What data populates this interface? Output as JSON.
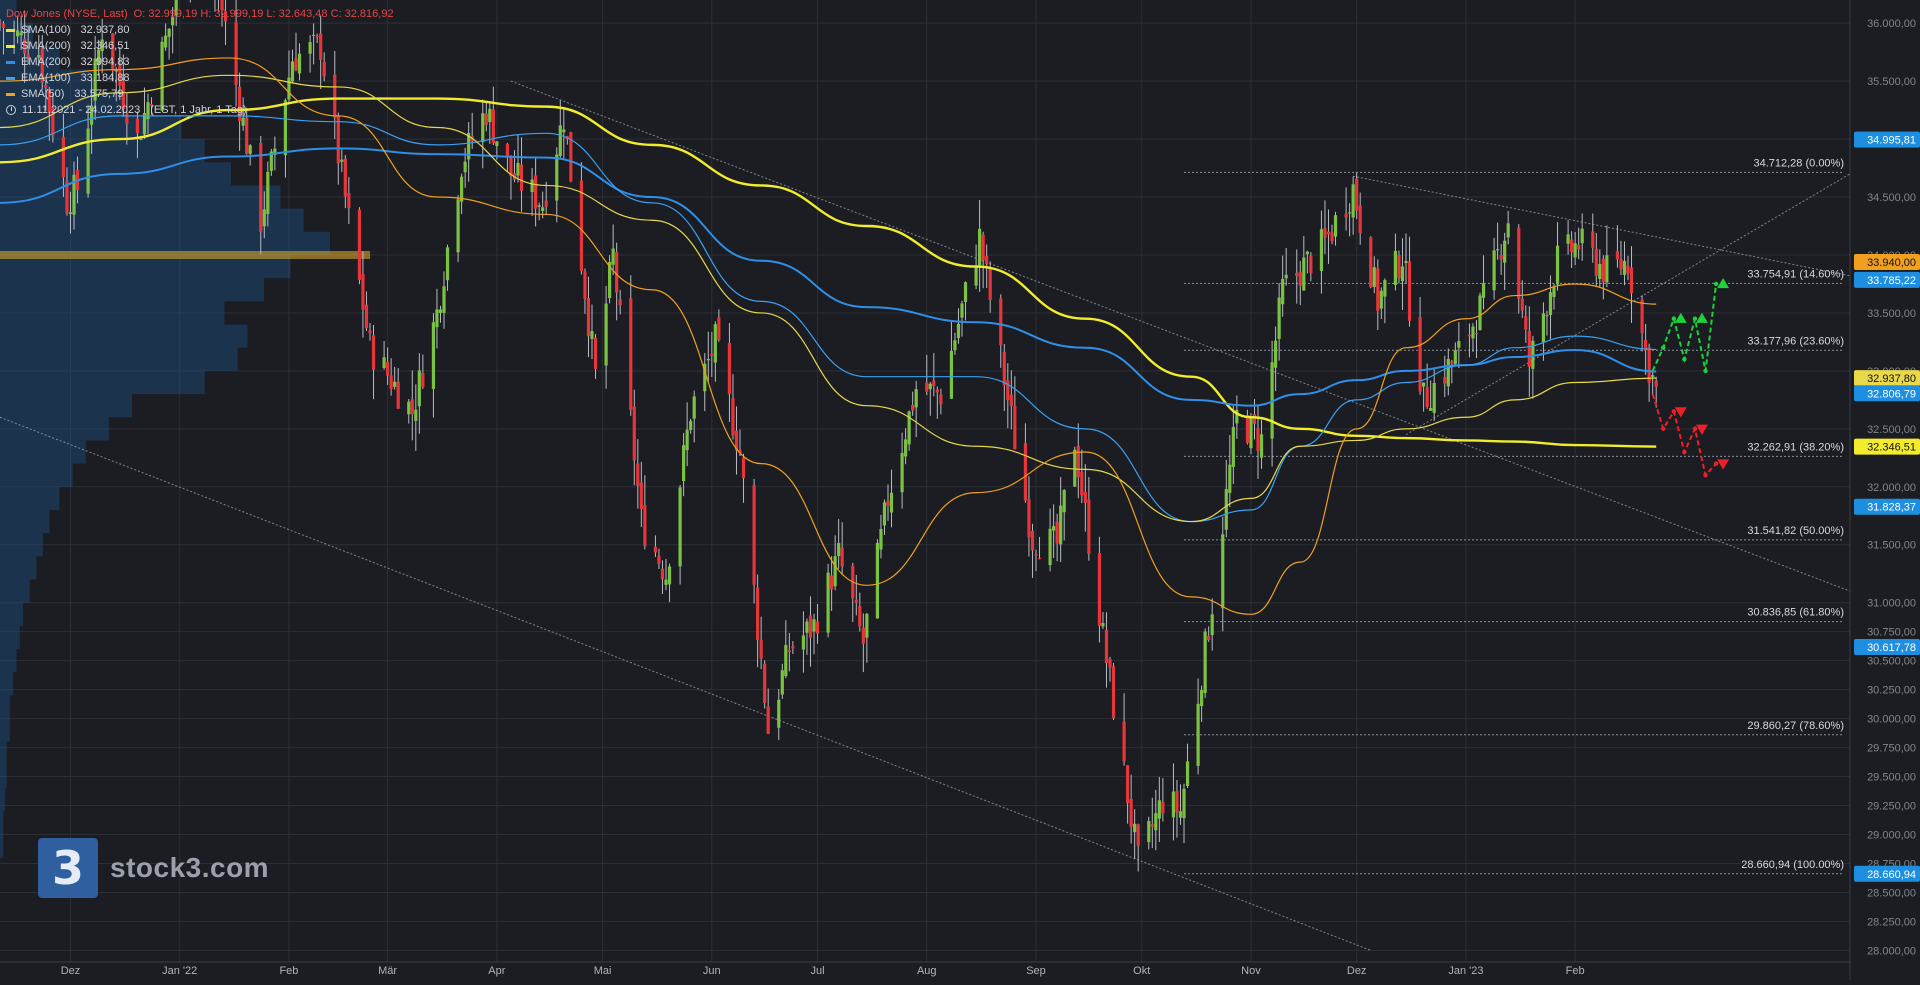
{
  "header": {
    "title": "Dow Jones (NYSE, Last)",
    "ohlc": "O: 32.999,19  H: 32.999,19  L: 32.643,48  C: 32.816,92",
    "range": "11.11.2021 - 24.02.2023",
    "range_detail": "(EST, 1 Jahr, 1 Tag)"
  },
  "legend": [
    {
      "name": "SMA(100)",
      "value": "32.937,80",
      "color": "#e8d84a"
    },
    {
      "name": "SMA(200)",
      "value": "32.346,51",
      "color": "#f2ec2c"
    },
    {
      "name": "EMA(200)",
      "value": "32.994,83",
      "color": "#2f8fe8"
    },
    {
      "name": "EMA(100)",
      "value": "33.184,88",
      "color": "#3aa0f2"
    },
    {
      "name": "SMA(50)",
      "value": "33.575,79",
      "color": "#f0a01e"
    }
  ],
  "logo": {
    "mark": "3",
    "text": "stock3.com"
  },
  "colors": {
    "up": "#7cc242",
    "down": "#e8353a",
    "grid": "#2c2f36",
    "bg": "#1b1d22"
  },
  "chart_data": {
    "type": "line",
    "title": "Dow Jones (NYSE, Last)",
    "ylim": [
      27900,
      36200
    ],
    "y_ticks": [
      {
        "v": 36000,
        "l": "36.000,00"
      },
      {
        "v": 35500,
        "l": "35.500,00"
      },
      {
        "v": 35000,
        "l": "35.000,00"
      },
      {
        "v": 34500,
        "l": "34.500,00"
      },
      {
        "v": 34000,
        "l": "34.000,00"
      },
      {
        "v": 33500,
        "l": "33.500,00"
      },
      {
        "v": 33000,
        "l": "33.000,00"
      },
      {
        "v": 32500,
        "l": "32.500,00"
      },
      {
        "v": 32000,
        "l": "32.000,00"
      },
      {
        "v": 31500,
        "l": "31.500,00"
      },
      {
        "v": 31000,
        "l": "31.000,00"
      },
      {
        "v": 30750,
        "l": "30.750,00"
      },
      {
        "v": 30500,
        "l": "30.500,00"
      },
      {
        "v": 30250,
        "l": "30.250,00"
      },
      {
        "v": 30000,
        "l": "30.000,00"
      },
      {
        "v": 29750,
        "l": "29.750,00"
      },
      {
        "v": 29500,
        "l": "29.500,00"
      },
      {
        "v": 29250,
        "l": "29.250,00"
      },
      {
        "v": 29000,
        "l": "29.000,00"
      },
      {
        "v": 28750,
        "l": "28.750,00"
      },
      {
        "v": 28500,
        "l": "28.500,00"
      },
      {
        "v": 28250,
        "l": "28.250,00"
      },
      {
        "v": 28000,
        "l": "28.000,00"
      }
    ],
    "x_ticks": [
      {
        "d": "2021-12-01",
        "l": "Dez"
      },
      {
        "d": "2022-01-01",
        "l": "Jan '22"
      },
      {
        "d": "2022-02-01",
        "l": "Feb"
      },
      {
        "d": "2022-03-01",
        "l": "Mär"
      },
      {
        "d": "2022-04-01",
        "l": "Apr"
      },
      {
        "d": "2022-05-01",
        "l": "Mai"
      },
      {
        "d": "2022-06-01",
        "l": "Jun"
      },
      {
        "d": "2022-07-01",
        "l": "Jul"
      },
      {
        "d": "2022-08-01",
        "l": "Aug"
      },
      {
        "d": "2022-09-01",
        "l": "Sep"
      },
      {
        "d": "2022-10-01",
        "l": "Okt"
      },
      {
        "d": "2022-11-01",
        "l": "Nov"
      },
      {
        "d": "2022-12-01",
        "l": "Dez"
      },
      {
        "d": "2023-01-01",
        "l": "Jan '23"
      },
      {
        "d": "2023-02-01",
        "l": "Feb"
      }
    ],
    "price_path": [
      [
        "2021-11-11",
        36000
      ],
      [
        "2021-11-22",
        35750
      ],
      [
        "2021-11-30",
        34480
      ],
      [
        "2021-12-03",
        34580
      ],
      [
        "2021-12-10",
        35950
      ],
      [
        "2021-12-20",
        35000
      ],
      [
        "2022-01-04",
        36600
      ],
      [
        "2022-01-12",
        36300
      ],
      [
        "2022-01-24",
        34300
      ],
      [
        "2022-02-02",
        35700
      ],
      [
        "2022-02-10",
        35800
      ],
      [
        "2022-02-18",
        34300
      ],
      [
        "2022-02-24",
        33200
      ],
      [
        "2022-03-08",
        32650
      ],
      [
        "2022-03-15",
        33500
      ],
      [
        "2022-03-22",
        34800
      ],
      [
        "2022-03-29",
        35250
      ],
      [
        "2022-04-05",
        34700
      ],
      [
        "2022-04-14",
        34450
      ],
      [
        "2022-04-20",
        35200
      ],
      [
        "2022-04-29",
        32950
      ],
      [
        "2022-05-04",
        34000
      ],
      [
        "2022-05-12",
        31700
      ],
      [
        "2022-05-19",
        31250
      ],
      [
        "2022-05-26",
        32650
      ],
      [
        "2022-06-02",
        33250
      ],
      [
        "2022-06-09",
        32300
      ],
      [
        "2022-06-17",
        29900
      ],
      [
        "2022-06-23",
        30600
      ],
      [
        "2022-06-30",
        30800
      ],
      [
        "2022-07-07",
        31400
      ],
      [
        "2022-07-14",
        30650
      ],
      [
        "2022-07-21",
        31900
      ],
      [
        "2022-07-29",
        32850
      ],
      [
        "2022-08-05",
        32800
      ],
      [
        "2022-08-16",
        34150
      ],
      [
        "2022-08-22",
        33100
      ],
      [
        "2022-08-31",
        31550
      ],
      [
        "2022-09-07",
        31500
      ],
      [
        "2022-09-12",
        32400
      ],
      [
        "2022-09-20",
        30700
      ],
      [
        "2022-09-30",
        28750
      ],
      [
        "2022-10-07",
        29300
      ],
      [
        "2022-10-12",
        29200
      ],
      [
        "2022-10-21",
        31000
      ],
      [
        "2022-10-28",
        32600
      ],
      [
        "2022-11-04",
        32400
      ],
      [
        "2022-11-10",
        33700
      ],
      [
        "2022-11-22",
        34100
      ],
      [
        "2022-11-30",
        34580
      ],
      [
        "2022-12-07",
        33600
      ],
      [
        "2022-12-14",
        34000
      ],
      [
        "2022-12-20",
        32750
      ],
      [
        "2022-12-30",
        33150
      ],
      [
        "2023-01-06",
        33600
      ],
      [
        "2023-01-13",
        34300
      ],
      [
        "2023-01-19",
        33050
      ],
      [
        "2023-01-27",
        33950
      ],
      [
        "2023-02-02",
        34100
      ],
      [
        "2023-02-10",
        33850
      ],
      [
        "2023-02-16",
        33950
      ],
      [
        "2023-02-21",
        33150
      ],
      [
        "2023-02-24",
        32817
      ]
    ],
    "series": [
      {
        "name": "SMA(200)",
        "color": "#f2ec2c",
        "width": 2.4,
        "points": [
          [
            "2021-11-11",
            34800
          ],
          [
            "2021-12-15",
            35000
          ],
          [
            "2022-01-15",
            35250
          ],
          [
            "2022-02-15",
            35350
          ],
          [
            "2022-03-15",
            35350
          ],
          [
            "2022-04-15",
            35280
          ],
          [
            "2022-05-15",
            34950
          ],
          [
            "2022-06-15",
            34600
          ],
          [
            "2022-07-15",
            34250
          ],
          [
            "2022-08-15",
            33900
          ],
          [
            "2022-09-15",
            33450
          ],
          [
            "2022-10-15",
            32950
          ],
          [
            "2022-11-01",
            32600
          ],
          [
            "2022-11-15",
            32500
          ],
          [
            "2022-12-01",
            32440
          ],
          [
            "2022-12-15",
            32420
          ],
          [
            "2023-01-01",
            32400
          ],
          [
            "2023-01-15",
            32390
          ],
          [
            "2023-02-01",
            32360
          ],
          [
            "2023-02-24",
            32347
          ]
        ]
      },
      {
        "name": "EMA(200)",
        "color": "#2f8fe8",
        "width": 2.0,
        "points": [
          [
            "2021-11-11",
            34450
          ],
          [
            "2021-12-15",
            34700
          ],
          [
            "2022-01-15",
            34850
          ],
          [
            "2022-02-15",
            34920
          ],
          [
            "2022-03-15",
            34870
          ],
          [
            "2022-04-15",
            34840
          ],
          [
            "2022-05-15",
            34500
          ],
          [
            "2022-06-15",
            33950
          ],
          [
            "2022-07-15",
            33550
          ],
          [
            "2022-08-15",
            33420
          ],
          [
            "2022-09-15",
            33200
          ],
          [
            "2022-10-15",
            32750
          ],
          [
            "2022-11-01",
            32700
          ],
          [
            "2022-11-15",
            32800
          ],
          [
            "2022-12-01",
            32920
          ],
          [
            "2022-12-15",
            33000
          ],
          [
            "2023-01-01",
            33050
          ],
          [
            "2023-01-15",
            33120
          ],
          [
            "2023-02-01",
            33180
          ],
          [
            "2023-02-24",
            32995
          ]
        ]
      },
      {
        "name": "EMA(100)",
        "color": "#3aa0f2",
        "width": 1.2,
        "points": [
          [
            "2021-11-11",
            34950
          ],
          [
            "2021-12-15",
            35200
          ],
          [
            "2022-01-15",
            35200
          ],
          [
            "2022-02-15",
            35150
          ],
          [
            "2022-03-15",
            34950
          ],
          [
            "2022-04-15",
            35050
          ],
          [
            "2022-05-15",
            34450
          ],
          [
            "2022-06-15",
            33600
          ],
          [
            "2022-07-15",
            32950
          ],
          [
            "2022-08-15",
            32950
          ],
          [
            "2022-09-15",
            32500
          ],
          [
            "2022-10-15",
            31700
          ],
          [
            "2022-11-01",
            31800
          ],
          [
            "2022-11-15",
            32350
          ],
          [
            "2022-12-01",
            32750
          ],
          [
            "2022-12-15",
            32900
          ],
          [
            "2023-01-01",
            33050
          ],
          [
            "2023-01-15",
            33200
          ],
          [
            "2023-02-01",
            33300
          ],
          [
            "2023-02-24",
            33185
          ]
        ]
      },
      {
        "name": "SMA(100)",
        "color": "#e8d84a",
        "width": 1.2,
        "points": [
          [
            "2021-11-11",
            35100
          ],
          [
            "2021-12-15",
            35400
          ],
          [
            "2022-01-15",
            35550
          ],
          [
            "2022-02-15",
            35450
          ],
          [
            "2022-03-15",
            35100
          ],
          [
            "2022-04-15",
            34600
          ],
          [
            "2022-05-15",
            34300
          ],
          [
            "2022-06-15",
            33500
          ],
          [
            "2022-07-15",
            32700
          ],
          [
            "2022-08-15",
            32350
          ],
          [
            "2022-09-15",
            32150
          ],
          [
            "2022-10-15",
            31700
          ],
          [
            "2022-11-01",
            31900
          ],
          [
            "2022-11-15",
            32350
          ],
          [
            "2022-12-01",
            32400
          ],
          [
            "2022-12-15",
            32500
          ],
          [
            "2023-01-01",
            32600
          ],
          [
            "2023-01-15",
            32750
          ],
          [
            "2023-02-01",
            32900
          ],
          [
            "2023-02-24",
            32938
          ]
        ]
      },
      {
        "name": "SMA(50)",
        "color": "#f0a01e",
        "width": 1.2,
        "points": [
          [
            "2021-11-11",
            35500
          ],
          [
            "2021-12-15",
            35600
          ],
          [
            "2022-01-15",
            35700
          ],
          [
            "2022-02-15",
            35200
          ],
          [
            "2022-03-15",
            34500
          ],
          [
            "2022-04-15",
            34350
          ],
          [
            "2022-05-15",
            33700
          ],
          [
            "2022-06-15",
            32200
          ],
          [
            "2022-07-15",
            31150
          ],
          [
            "2022-08-15",
            31950
          ],
          [
            "2022-09-15",
            32300
          ],
          [
            "2022-10-15",
            31050
          ],
          [
            "2022-11-01",
            30900
          ],
          [
            "2022-11-15",
            31350
          ],
          [
            "2022-12-01",
            32500
          ],
          [
            "2022-12-15",
            33200
          ],
          [
            "2023-01-01",
            33450
          ],
          [
            "2023-01-15",
            33650
          ],
          [
            "2023-02-01",
            33750
          ],
          [
            "2023-02-24",
            33576
          ]
        ]
      }
    ],
    "fib_levels": [
      {
        "v": 34712.28,
        "l": "34.712,28 (0.00%)"
      },
      {
        "v": 33754.91,
        "l": "33.754,91 (14.60%)"
      },
      {
        "v": 33177.96,
        "l": "33.177,96 (23.60%)"
      },
      {
        "v": 32262.91,
        "l": "32.262,91 (38.20%)"
      },
      {
        "v": 31541.82,
        "l": "31.541,82 (50.00%)"
      },
      {
        "v": 30836.85,
        "l": "30.836,85 (61.80%)"
      },
      {
        "v": 29860.27,
        "l": "29.860,27 (78.60%)"
      },
      {
        "v": 28660.94,
        "l": "28.660,94 (100.00%)"
      }
    ],
    "fib_start": "2022-10-13",
    "trendlines": [
      {
        "from": [
          "2022-11-30",
          34680
        ],
        "to": [
          "2023-02-24",
          34150
        ],
        "ext": [
          "2023-04-20",
          33820
        ]
      },
      {
        "from": [
          "2022-12-15",
          32450
        ],
        "to": [
          "2023-02-24",
          33500
        ],
        "ext": [
          "2023-04-20",
          34700
        ]
      },
      {
        "from": [
          "2022-04-05",
          35500
        ],
        "to": [
          "2022-08-16",
          34250
        ],
        "ext": [
          "2023-04-20",
          31100
        ]
      },
      {
        "from": [
          "2021-11-11",
          32600
        ],
        "to": [
          "2022-06-17",
          29780
        ],
        "ext": [
          "2022-12-05",
          28000
        ]
      }
    ],
    "projection_up": [
      [
        "2023-02-23",
        33000
      ],
      [
        "2023-02-26",
        33200
      ],
      [
        "2023-03-01",
        33450
      ],
      [
        "2023-03-04",
        33100
      ],
      [
        "2023-03-07",
        33450
      ],
      [
        "2023-03-10",
        33000
      ],
      [
        "2023-03-13",
        33750
      ]
    ],
    "projection_down": [
      [
        "2023-02-23",
        32800
      ],
      [
        "2023-02-26",
        32500
      ],
      [
        "2023-03-01",
        32650
      ],
      [
        "2023-03-04",
        32300
      ],
      [
        "2023-03-07",
        32500
      ],
      [
        "2023-03-10",
        32100
      ],
      [
        "2023-03-13",
        32200
      ]
    ],
    "price_labels": [
      {
        "v": 34995.81,
        "l": "34.995,81",
        "bg": "#1e8fe0",
        "fg": "#ffffff"
      },
      {
        "v": 33940.0,
        "l": "33.940,00",
        "bg": "#f0a01e",
        "fg": "#111111"
      },
      {
        "v": 33785.22,
        "l": "33.785,22",
        "bg": "#1e8fe0",
        "fg": "#ffffff"
      },
      {
        "v": 32937.8,
        "l": "32.937,80",
        "bg": "#e8d84a",
        "fg": "#111111"
      },
      {
        "v": 32806.79,
        "l": "32.806,79",
        "bg": "#1e8fe0",
        "fg": "#ffffff"
      },
      {
        "v": 32346.51,
        "l": "32.346,51",
        "bg": "#f2ec2c",
        "fg": "#111111"
      },
      {
        "v": 31828.37,
        "l": "31.828,37",
        "bg": "#1e8fe0",
        "fg": "#ffffff"
      },
      {
        "v": 30617.78,
        "l": "30.617,78",
        "bg": "#1e8fe0",
        "fg": "#ffffff"
      },
      {
        "v": 28660.94,
        "l": "28.660,94",
        "bg": "#1e8fe0",
        "fg": "#ffffff"
      }
    ],
    "volume_profile": [
      [
        36100,
        0.05
      ],
      [
        35900,
        0.1
      ],
      [
        35700,
        0.18
      ],
      [
        35500,
        0.28
      ],
      [
        35300,
        0.38
      ],
      [
        35100,
        0.55
      ],
      [
        34900,
        0.62
      ],
      [
        34700,
        0.7
      ],
      [
        34500,
        0.85
      ],
      [
        34300,
        0.92
      ],
      [
        34100,
        1.0
      ],
      [
        33900,
        0.88
      ],
      [
        33700,
        0.8
      ],
      [
        33500,
        0.68
      ],
      [
        33300,
        0.75
      ],
      [
        33100,
        0.72
      ],
      [
        32900,
        0.62
      ],
      [
        32700,
        0.4
      ],
      [
        32500,
        0.33
      ],
      [
        32300,
        0.26
      ],
      [
        32100,
        0.22
      ],
      [
        31900,
        0.18
      ],
      [
        31700,
        0.15
      ],
      [
        31500,
        0.13
      ],
      [
        31300,
        0.11
      ],
      [
        31100,
        0.09
      ],
      [
        30900,
        0.07
      ],
      [
        30700,
        0.06
      ],
      [
        30500,
        0.05
      ],
      [
        30300,
        0.04
      ],
      [
        30100,
        0.03
      ],
      [
        29900,
        0.03
      ],
      [
        29700,
        0.02
      ],
      [
        29500,
        0.02
      ],
      [
        29300,
        0.015
      ],
      [
        29100,
        0.01
      ],
      [
        28900,
        0.01
      ]
    ],
    "poc": 34000
  }
}
